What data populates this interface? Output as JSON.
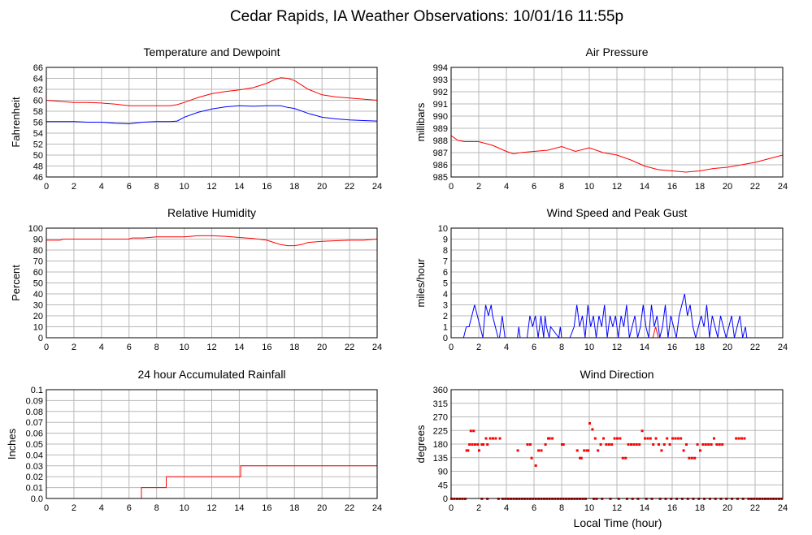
{
  "page": {
    "title": "Cedar Rapids, IA Weather Observations: 10/01/16 11:55p",
    "x_axis_label": "Local Time (hour)"
  },
  "chart_data": [
    {
      "id": "temperature",
      "type": "line",
      "title": "Temperature and Dewpoint",
      "xlabel": "",
      "ylabel": "Fahrenheit",
      "xlim": [
        0,
        24
      ],
      "ylim": [
        46,
        66
      ],
      "xticks": [
        0,
        2,
        4,
        6,
        8,
        10,
        12,
        14,
        16,
        18,
        20,
        22,
        24
      ],
      "yticks": [
        46,
        48,
        50,
        52,
        54,
        56,
        58,
        60,
        62,
        64,
        66
      ],
      "grid": true,
      "series": [
        {
          "color": "#ff0000",
          "x": [
            0,
            1,
            2,
            3,
            4,
            5,
            6,
            7,
            8,
            9,
            9.5,
            10,
            11,
            12,
            13,
            14,
            15,
            16,
            16.5,
            17,
            17.5,
            18,
            18.5,
            19,
            20,
            21,
            22,
            23,
            24
          ],
          "y": [
            60,
            59.8,
            59.6,
            59.6,
            59.5,
            59.3,
            59,
            59,
            59,
            59,
            59.2,
            59.6,
            60.5,
            61.2,
            61.6,
            61.9,
            62.3,
            63.1,
            63.7,
            64.1,
            64.0,
            63.6,
            62.8,
            62.0,
            61,
            60.6,
            60.4,
            60.2,
            60
          ]
        },
        {
          "color": "#0000ff",
          "x": [
            0,
            1,
            2,
            3,
            4,
            5,
            6,
            7,
            8,
            9,
            9.5,
            10,
            11,
            12,
            13,
            14,
            15,
            16,
            17,
            17.5,
            18,
            19,
            20,
            21,
            22,
            23,
            24
          ],
          "y": [
            56.1,
            56.1,
            56.1,
            56.0,
            56.0,
            55.8,
            55.7,
            56.0,
            56.1,
            56.1,
            56.2,
            56.9,
            57.8,
            58.4,
            58.8,
            59.0,
            58.9,
            59.0,
            59.0,
            58.7,
            58.5,
            57.6,
            56.9,
            56.6,
            56.4,
            56.3,
            56.2
          ]
        }
      ]
    },
    {
      "id": "pressure",
      "type": "line",
      "title": "Air Pressure",
      "xlabel": "",
      "ylabel": "millibars",
      "xlim": [
        0,
        24
      ],
      "ylim": [
        985,
        994
      ],
      "xticks": [
        0,
        2,
        4,
        6,
        8,
        10,
        12,
        14,
        16,
        18,
        20,
        22,
        24
      ],
      "yticks": [
        985,
        986,
        987,
        988,
        989,
        990,
        991,
        992,
        993,
        994
      ],
      "grid": true,
      "series": [
        {
          "color": "#ff0000",
          "x": [
            0,
            0.5,
            1,
            2,
            3,
            4,
            4.5,
            5,
            6,
            7,
            8,
            9,
            10,
            11,
            12,
            13,
            14,
            15,
            16,
            17,
            18,
            19,
            20,
            21,
            22,
            23,
            24
          ],
          "y": [
            988.4,
            988.0,
            987.9,
            987.9,
            987.6,
            987.1,
            986.9,
            987.0,
            987.1,
            987.2,
            987.5,
            987.1,
            987.4,
            987.0,
            986.8,
            986.4,
            985.9,
            985.6,
            985.5,
            985.4,
            985.5,
            985.7,
            985.8,
            986.0,
            986.2,
            986.5,
            986.8
          ]
        }
      ]
    },
    {
      "id": "humidity",
      "type": "line",
      "title": "Relative Humidity",
      "xlabel": "",
      "ylabel": "Percent",
      "xlim": [
        0,
        24
      ],
      "ylim": [
        0,
        100
      ],
      "xticks": [
        0,
        2,
        4,
        6,
        8,
        10,
        12,
        14,
        16,
        18,
        20,
        22,
        24
      ],
      "yticks": [
        0,
        10,
        20,
        30,
        40,
        50,
        60,
        70,
        80,
        90,
        100
      ],
      "grid": true,
      "series": [
        {
          "color": "#ff0000",
          "x": [
            0,
            1,
            1.2,
            2,
            3,
            4,
            5,
            6,
            6.2,
            7,
            8,
            9,
            10,
            11,
            12,
            13,
            14,
            15,
            16,
            16.5,
            17,
            17.5,
            18,
            18.5,
            19,
            20,
            21,
            22,
            23,
            24
          ],
          "y": [
            89,
            89,
            90,
            90,
            90,
            90,
            90,
            90,
            91,
            91,
            92,
            92,
            92,
            93,
            93,
            92.5,
            91.5,
            90.5,
            89,
            87,
            85,
            84,
            84,
            85,
            87,
            88,
            88.5,
            89,
            89,
            90
          ]
        }
      ]
    },
    {
      "id": "wind",
      "type": "line",
      "title": "Wind Speed and Peak Gust",
      "xlabel": "",
      "ylabel": "miles/hour",
      "xlim": [
        0,
        24
      ],
      "ylim": [
        0,
        10
      ],
      "xticks": [
        0,
        2,
        4,
        6,
        8,
        10,
        12,
        14,
        16,
        18,
        20,
        22,
        24
      ],
      "yticks": [
        0,
        1,
        2,
        3,
        4,
        5,
        6,
        7,
        8,
        9,
        10
      ],
      "grid": true,
      "series": [
        {
          "color": "#0000ff",
          "x": [
            0,
            0.9,
            1.1,
            1.3,
            1.5,
            1.7,
            1.9,
            2.1,
            2.3,
            2.5,
            2.7,
            2.9,
            3.0,
            3.2,
            3.4,
            3.5,
            3.7,
            3.9,
            4.8,
            4.9,
            5.0,
            5.5,
            5.7,
            5.9,
            6.1,
            6.3,
            6.5,
            6.7,
            6.8,
            6.9,
            7.1,
            7.2,
            7.8,
            7.9,
            8.0,
            8.6,
            8.9,
            9.1,
            9.3,
            9.5,
            9.7,
            9.9,
            10.1,
            10.3,
            10.5,
            10.7,
            10.9,
            11.1,
            11.3,
            11.5,
            11.7,
            11.9,
            12.1,
            12.3,
            12.5,
            12.7,
            12.9,
            13.1,
            13.3,
            13.5,
            13.7,
            13.9,
            14.1,
            14.3,
            14.5,
            14.7,
            14.9,
            15.1,
            15.3,
            15.5,
            15.7,
            15.9,
            16.1,
            16.3,
            16.5,
            16.7,
            16.9,
            17.1,
            17.3,
            17.5,
            17.7,
            17.9,
            18.1,
            18.3,
            18.5,
            18.7,
            18.9,
            19.1,
            19.3,
            19.5,
            19.7,
            19.9,
            20.1,
            20.3,
            20.5,
            20.7,
            20.9,
            21.1,
            21.3,
            21.4,
            24
          ],
          "y": [
            0,
            0,
            1,
            1,
            2,
            3,
            2,
            1,
            0,
            3,
            2,
            3,
            2,
            1,
            0,
            0,
            2,
            0,
            0,
            1,
            0,
            0,
            2,
            1,
            2,
            0,
            2,
            0,
            2,
            1,
            0,
            1,
            0,
            1,
            0,
            0,
            1,
            3,
            1,
            2,
            0,
            3,
            1,
            2,
            0,
            2,
            1,
            3,
            0,
            2,
            1,
            2,
            0,
            2,
            1,
            3,
            0,
            1,
            2,
            0,
            1,
            3,
            1,
            0,
            3,
            1,
            2,
            0,
            1,
            3,
            0,
            2,
            1,
            0,
            2,
            3,
            4,
            2,
            3,
            1,
            0,
            1,
            2,
            1,
            3,
            0,
            2,
            1,
            0,
            2,
            1,
            0,
            1,
            2,
            0,
            1,
            2,
            0,
            1,
            0,
            0
          ]
        },
        {
          "color": "#ff0000",
          "x": [
            14.6,
            14.8,
            15.0
          ],
          "y": [
            0,
            1,
            0
          ]
        }
      ]
    },
    {
      "id": "rainfall",
      "type": "line",
      "title": "24 hour Accumulated Rainfall",
      "xlabel": "",
      "ylabel": "Inches",
      "xlim": [
        0,
        24
      ],
      "ylim": [
        0,
        0.1
      ],
      "xticks": [
        0,
        2,
        4,
        6,
        8,
        10,
        12,
        14,
        16,
        18,
        20,
        22,
        24
      ],
      "yticks": [
        "0.0",
        "0.01",
        "0.02",
        "0.03",
        "0.04",
        "0.05",
        "0.06",
        "0.07",
        "0.08",
        "0.09",
        "0.1"
      ],
      "grid": true,
      "series": [
        {
          "color": "#ff0000",
          "x": [
            0,
            6.9,
            6.9,
            8.7,
            8.7,
            14.1,
            14.1,
            24
          ],
          "y": [
            0,
            0,
            0.01,
            0.01,
            0.02,
            0.02,
            0.03,
            0.03
          ]
        }
      ]
    },
    {
      "id": "direction",
      "type": "scatter",
      "title": "Wind Direction",
      "xlabel": "Local Time (hour)",
      "ylabel": "degrees",
      "xlim": [
        0,
        24
      ],
      "ylim": [
        0,
        360
      ],
      "xticks": [
        0,
        2,
        4,
        6,
        8,
        10,
        12,
        14,
        16,
        18,
        20,
        22,
        24
      ],
      "yticks": [
        0,
        45,
        90,
        135,
        180,
        225,
        270,
        315,
        360
      ],
      "grid": true,
      "series": [
        {
          "color": "#ff0000",
          "x": [
            1.1,
            1.2,
            1.3,
            1.4,
            1.5,
            1.6,
            1.7,
            1.9,
            2.0,
            2.2,
            2.3,
            2.5,
            2.6,
            2.8,
            3.0,
            3.2,
            3.5,
            4.8,
            5.5,
            5.7,
            5.8,
            6.1,
            6.3,
            6.5,
            6.8,
            7.0,
            7.1,
            7.3,
            8.0,
            8.1,
            9.1,
            9.3,
            9.4,
            9.6,
            9.8,
            9.9,
            10.0,
            10.2,
            10.4,
            10.6,
            10.8,
            11.0,
            11.2,
            11.4,
            11.6,
            11.8,
            12.0,
            12.2,
            12.4,
            12.6,
            12.8,
            13.0,
            13.2,
            13.4,
            13.6,
            13.8,
            14.0,
            14.2,
            14.4,
            14.6,
            14.8,
            15.0,
            15.2,
            15.4,
            15.6,
            15.8,
            16.0,
            16.2,
            16.4,
            16.6,
            16.8,
            17.0,
            17.2,
            17.4,
            17.6,
            17.8,
            18.0,
            18.2,
            18.4,
            18.6,
            18.8,
            19.0,
            19.2,
            19.4,
            19.6,
            20.6,
            20.8,
            21.0,
            21.2
          ],
          "y": [
            160,
            160,
            180,
            225,
            180,
            225,
            180,
            180,
            160,
            180,
            180,
            200,
            180,
            200,
            200,
            200,
            200,
            160,
            180,
            180,
            135,
            110,
            160,
            160,
            180,
            200,
            200,
            200,
            180,
            180,
            160,
            135,
            135,
            160,
            160,
            160,
            250,
            230,
            200,
            160,
            180,
            200,
            180,
            180,
            180,
            200,
            200,
            200,
            135,
            135,
            180,
            180,
            180,
            180,
            180,
            225,
            200,
            200,
            200,
            180,
            200,
            180,
            160,
            180,
            200,
            180,
            200,
            200,
            200,
            200,
            160,
            180,
            135,
            135,
            135,
            180,
            160,
            180,
            180,
            180,
            180,
            200,
            180,
            180,
            180,
            200,
            200,
            200,
            200
          ]
        },
        {
          "color": "#ff0000",
          "x": [
            0.0,
            0.2,
            0.4,
            0.6,
            0.8,
            1.0,
            2.2,
            2.6,
            3.4,
            3.7,
            3.9,
            4.1,
            4.3,
            4.5,
            4.7,
            4.9,
            5.1,
            5.3,
            5.5,
            5.7,
            5.9,
            6.1,
            6.3,
            6.5,
            6.7,
            6.9,
            7.1,
            7.3,
            7.5,
            7.7,
            7.9,
            8.1,
            8.3,
            8.5,
            8.7,
            8.9,
            9.1,
            9.3,
            9.5,
            9.7,
            10.3,
            10.5,
            10.9,
            11.5,
            12.1,
            12.7,
            13.1,
            13.5,
            14.1,
            14.5,
            15.1,
            15.5,
            15.9,
            16.3,
            16.7,
            17.1,
            17.5,
            17.9,
            18.3,
            18.7,
            19.1,
            19.5,
            19.9,
            20.3,
            20.7,
            21.1,
            21.5,
            21.7,
            21.9,
            22.1,
            22.3,
            22.5,
            22.7,
            22.9,
            23.1,
            23.3,
            23.5,
            23.7,
            23.9
          ],
          "y": [
            0,
            0,
            0,
            0,
            0,
            0,
            0,
            0,
            0,
            0,
            0,
            0,
            0,
            0,
            0,
            0,
            0,
            0,
            0,
            0,
            0,
            0,
            0,
            0,
            0,
            0,
            0,
            0,
            0,
            0,
            0,
            0,
            0,
            0,
            0,
            0,
            0,
            0,
            0,
            0,
            0,
            0,
            0,
            0,
            0,
            0,
            0,
            0,
            0,
            0,
            0,
            0,
            0,
            0,
            0,
            0,
            0,
            0,
            0,
            0,
            0,
            0,
            0,
            0,
            0,
            0,
            0,
            0,
            0,
            0,
            0,
            0,
            0,
            0,
            0,
            0,
            0,
            0,
            0
          ]
        }
      ]
    }
  ]
}
